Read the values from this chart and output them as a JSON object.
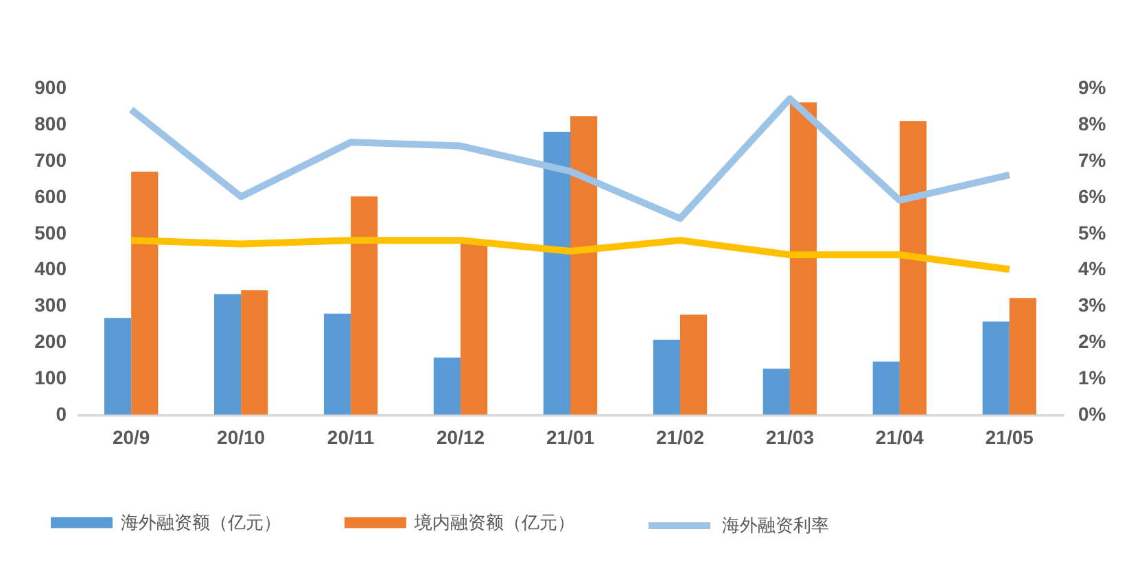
{
  "chart_data": {
    "type": "bar",
    "categories": [
      "20/9",
      "20/10",
      "20/11",
      "20/12",
      "21/01",
      "21/02",
      "21/03",
      "21/04",
      "21/05"
    ],
    "series": [
      {
        "name": "海外融资额（亿元）",
        "color": "#5b9bd5",
        "values": [
          266,
          332,
          278,
          157,
          779,
          206,
          126,
          146,
          256
        ]
      },
      {
        "name": "境内融资额（亿元）",
        "color": "#ed7d31",
        "values": [
          669,
          342,
          601,
          473,
          822,
          275,
          860,
          809,
          321
        ]
      },
      {
        "name": "海外融资利率",
        "type": "line",
        "axis": "y2",
        "color": "#9dc3e6",
        "values": [
          8.4,
          6.0,
          7.5,
          7.4,
          6.7,
          5.4,
          8.7,
          5.9,
          6.6
        ]
      },
      {
        "type": "line",
        "axis": "y2",
        "color": "#ffc000",
        "values": [
          4.8,
          4.7,
          4.8,
          4.8,
          4.5,
          4.8,
          4.4,
          4.4,
          4.0
        ]
      }
    ],
    "ylim": [
      0,
      900
    ],
    "yticks": [
      0,
      100,
      200,
      300,
      400,
      500,
      600,
      700,
      800,
      900
    ],
    "y2lim": [
      0,
      9
    ],
    "y2ticks": [
      {
        "value": 0,
        "label": "0%"
      },
      {
        "value": 1,
        "label": "1%"
      },
      {
        "value": 2,
        "label": "2%"
      },
      {
        "value": 3,
        "label": "3%"
      },
      {
        "value": 4,
        "label": "4%"
      },
      {
        "value": 5,
        "label": "5%"
      },
      {
        "value": 6,
        "label": "6%"
      },
      {
        "value": 7,
        "label": "7%"
      },
      {
        "value": 8,
        "label": "8%"
      },
      {
        "value": 9,
        "label": "9%"
      }
    ],
    "grid": false,
    "legend": "bottom"
  }
}
